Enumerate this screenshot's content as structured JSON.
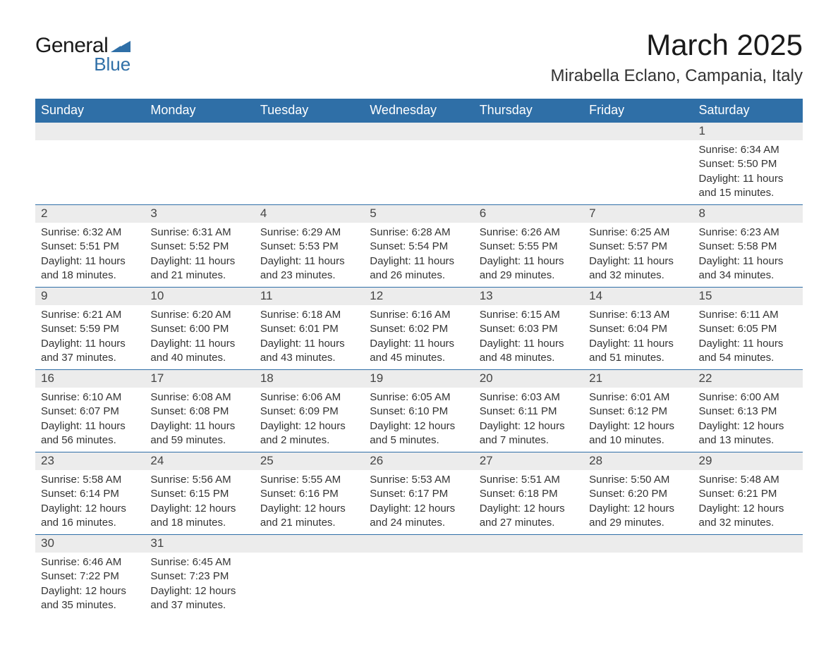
{
  "logo": {
    "text1": "General",
    "text2": "Blue",
    "triangle_color": "#2f6fa7"
  },
  "header": {
    "month_title": "March 2025",
    "location": "Mirabella Eclano, Campania, Italy"
  },
  "colors": {
    "header_bg": "#2f6fa7",
    "header_text": "#ffffff",
    "daynum_bg": "#ececec",
    "row_border": "#2f6fa7",
    "body_text": "#333333",
    "page_bg": "#ffffff"
  },
  "typography": {
    "month_title_fontsize": 42,
    "location_fontsize": 24,
    "dayheader_fontsize": 18,
    "daynum_fontsize": 17,
    "body_fontsize": 15
  },
  "calendar": {
    "type": "table",
    "columns": [
      "Sunday",
      "Monday",
      "Tuesday",
      "Wednesday",
      "Thursday",
      "Friday",
      "Saturday"
    ],
    "weeks": [
      [
        {
          "day": "",
          "sunrise": "",
          "sunset": "",
          "daylight": ""
        },
        {
          "day": "",
          "sunrise": "",
          "sunset": "",
          "daylight": ""
        },
        {
          "day": "",
          "sunrise": "",
          "sunset": "",
          "daylight": ""
        },
        {
          "day": "",
          "sunrise": "",
          "sunset": "",
          "daylight": ""
        },
        {
          "day": "",
          "sunrise": "",
          "sunset": "",
          "daylight": ""
        },
        {
          "day": "",
          "sunrise": "",
          "sunset": "",
          "daylight": ""
        },
        {
          "day": "1",
          "sunrise": "6:34 AM",
          "sunset": "5:50 PM",
          "daylight": "11 hours and 15 minutes."
        }
      ],
      [
        {
          "day": "2",
          "sunrise": "6:32 AM",
          "sunset": "5:51 PM",
          "daylight": "11 hours and 18 minutes."
        },
        {
          "day": "3",
          "sunrise": "6:31 AM",
          "sunset": "5:52 PM",
          "daylight": "11 hours and 21 minutes."
        },
        {
          "day": "4",
          "sunrise": "6:29 AM",
          "sunset": "5:53 PM",
          "daylight": "11 hours and 23 minutes."
        },
        {
          "day": "5",
          "sunrise": "6:28 AM",
          "sunset": "5:54 PM",
          "daylight": "11 hours and 26 minutes."
        },
        {
          "day": "6",
          "sunrise": "6:26 AM",
          "sunset": "5:55 PM",
          "daylight": "11 hours and 29 minutes."
        },
        {
          "day": "7",
          "sunrise": "6:25 AM",
          "sunset": "5:57 PM",
          "daylight": "11 hours and 32 minutes."
        },
        {
          "day": "8",
          "sunrise": "6:23 AM",
          "sunset": "5:58 PM",
          "daylight": "11 hours and 34 minutes."
        }
      ],
      [
        {
          "day": "9",
          "sunrise": "6:21 AM",
          "sunset": "5:59 PM",
          "daylight": "11 hours and 37 minutes."
        },
        {
          "day": "10",
          "sunrise": "6:20 AM",
          "sunset": "6:00 PM",
          "daylight": "11 hours and 40 minutes."
        },
        {
          "day": "11",
          "sunrise": "6:18 AM",
          "sunset": "6:01 PM",
          "daylight": "11 hours and 43 minutes."
        },
        {
          "day": "12",
          "sunrise": "6:16 AM",
          "sunset": "6:02 PM",
          "daylight": "11 hours and 45 minutes."
        },
        {
          "day": "13",
          "sunrise": "6:15 AM",
          "sunset": "6:03 PM",
          "daylight": "11 hours and 48 minutes."
        },
        {
          "day": "14",
          "sunrise": "6:13 AM",
          "sunset": "6:04 PM",
          "daylight": "11 hours and 51 minutes."
        },
        {
          "day": "15",
          "sunrise": "6:11 AM",
          "sunset": "6:05 PM",
          "daylight": "11 hours and 54 minutes."
        }
      ],
      [
        {
          "day": "16",
          "sunrise": "6:10 AM",
          "sunset": "6:07 PM",
          "daylight": "11 hours and 56 minutes."
        },
        {
          "day": "17",
          "sunrise": "6:08 AM",
          "sunset": "6:08 PM",
          "daylight": "11 hours and 59 minutes."
        },
        {
          "day": "18",
          "sunrise": "6:06 AM",
          "sunset": "6:09 PM",
          "daylight": "12 hours and 2 minutes."
        },
        {
          "day": "19",
          "sunrise": "6:05 AM",
          "sunset": "6:10 PM",
          "daylight": "12 hours and 5 minutes."
        },
        {
          "day": "20",
          "sunrise": "6:03 AM",
          "sunset": "6:11 PM",
          "daylight": "12 hours and 7 minutes."
        },
        {
          "day": "21",
          "sunrise": "6:01 AM",
          "sunset": "6:12 PM",
          "daylight": "12 hours and 10 minutes."
        },
        {
          "day": "22",
          "sunrise": "6:00 AM",
          "sunset": "6:13 PM",
          "daylight": "12 hours and 13 minutes."
        }
      ],
      [
        {
          "day": "23",
          "sunrise": "5:58 AM",
          "sunset": "6:14 PM",
          "daylight": "12 hours and 16 minutes."
        },
        {
          "day": "24",
          "sunrise": "5:56 AM",
          "sunset": "6:15 PM",
          "daylight": "12 hours and 18 minutes."
        },
        {
          "day": "25",
          "sunrise": "5:55 AM",
          "sunset": "6:16 PM",
          "daylight": "12 hours and 21 minutes."
        },
        {
          "day": "26",
          "sunrise": "5:53 AM",
          "sunset": "6:17 PM",
          "daylight": "12 hours and 24 minutes."
        },
        {
          "day": "27",
          "sunrise": "5:51 AM",
          "sunset": "6:18 PM",
          "daylight": "12 hours and 27 minutes."
        },
        {
          "day": "28",
          "sunrise": "5:50 AM",
          "sunset": "6:20 PM",
          "daylight": "12 hours and 29 minutes."
        },
        {
          "day": "29",
          "sunrise": "5:48 AM",
          "sunset": "6:21 PM",
          "daylight": "12 hours and 32 minutes."
        }
      ],
      [
        {
          "day": "30",
          "sunrise": "6:46 AM",
          "sunset": "7:22 PM",
          "daylight": "12 hours and 35 minutes."
        },
        {
          "day": "31",
          "sunrise": "6:45 AM",
          "sunset": "7:23 PM",
          "daylight": "12 hours and 37 minutes."
        },
        {
          "day": "",
          "sunrise": "",
          "sunset": "",
          "daylight": ""
        },
        {
          "day": "",
          "sunrise": "",
          "sunset": "",
          "daylight": ""
        },
        {
          "day": "",
          "sunrise": "",
          "sunset": "",
          "daylight": ""
        },
        {
          "day": "",
          "sunrise": "",
          "sunset": "",
          "daylight": ""
        },
        {
          "day": "",
          "sunrise": "",
          "sunset": "",
          "daylight": ""
        }
      ]
    ]
  },
  "labels": {
    "sunrise_prefix": "Sunrise: ",
    "sunset_prefix": "Sunset: ",
    "daylight_prefix": "Daylight: "
  }
}
